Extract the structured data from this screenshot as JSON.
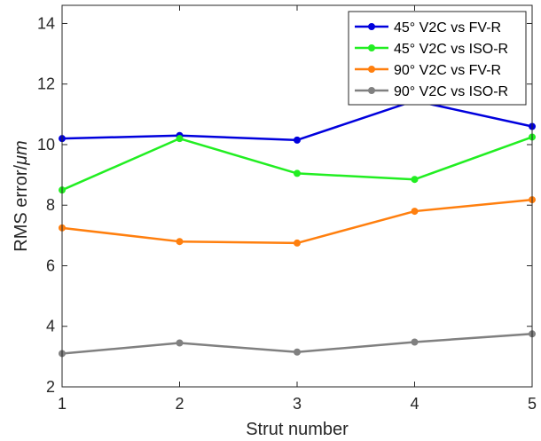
{
  "chart_data": {
    "type": "line",
    "xlabel": "Strut number",
    "ylabel_prefix": "RMS error/",
    "ylabel_unit": "μm",
    "x": [
      1,
      2,
      3,
      4,
      5
    ],
    "xlim": [
      1,
      5
    ],
    "ylim": [
      2,
      14.6
    ],
    "xticks": [
      1,
      2,
      3,
      4,
      5
    ],
    "yticks": [
      2,
      4,
      6,
      8,
      10,
      12,
      14
    ],
    "grid": false,
    "legend_position": "top-right",
    "series": [
      {
        "name": "45° V2C vs FV-R",
        "color": "#0000dd",
        "values": [
          10.2,
          10.3,
          10.15,
          11.45,
          10.6
        ]
      },
      {
        "name": "45° V2C vs ISO-R",
        "color": "#22ee22",
        "values": [
          8.5,
          10.2,
          9.05,
          8.85,
          10.25
        ]
      },
      {
        "name": "90° V2C vs FV-R",
        "color": "#ff7f0e",
        "values": [
          7.25,
          6.8,
          6.75,
          7.8,
          8.18
        ]
      },
      {
        "name": "90° V2C vs ISO-R",
        "color": "#808080",
        "values": [
          3.1,
          3.45,
          3.15,
          3.48,
          3.75
        ]
      }
    ]
  }
}
